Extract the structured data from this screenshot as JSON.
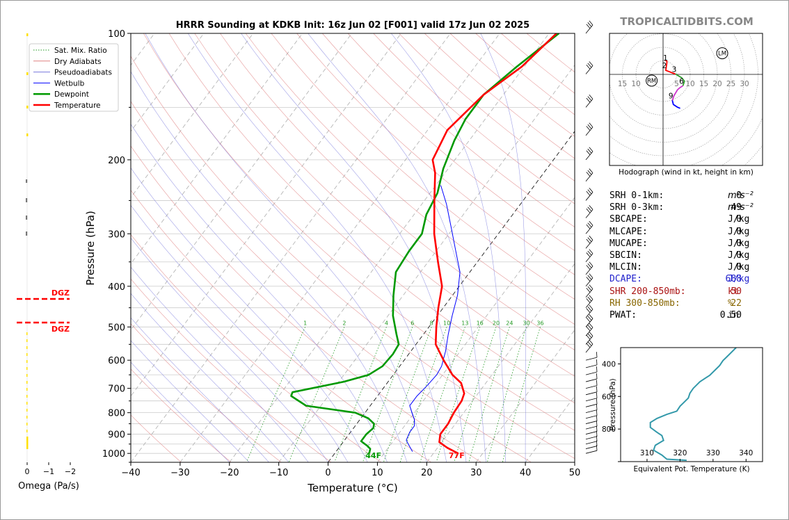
{
  "watermark": "TROPICALTIDBITS.COM",
  "chart_data": [
    {
      "type": "line",
      "name": "skew-t",
      "title": "HRRR Sounding at KDKB Init: 16z Jun 02 [F001] valid 17z Jun 02 2025",
      "xlabel": "Temperature (°C)",
      "ylabel": "Pressure (hPa)",
      "xlim": [
        -40,
        50
      ],
      "ylim": [
        1050,
        100
      ],
      "y_scale": "log",
      "x_ticks": [
        "−40",
        "−30",
        "−20",
        "−10",
        "0",
        "10",
        "20",
        "30",
        "40",
        "50"
      ],
      "y_ticks": [
        "100",
        "200",
        "300",
        "400",
        "500",
        "600",
        "700",
        "800",
        "900",
        "1000"
      ],
      "legend": [
        "Sat. Mix. Ratio",
        "Dry Adiabats",
        "Pseudoadiabats",
        "Wetbulb",
        "Dewpoint",
        "Temperature"
      ],
      "legend_position": "top-left",
      "mixing_ratio_labels": [
        "1",
        "2",
        "4",
        "6",
        "8",
        "10",
        "13",
        "16",
        "20",
        "24",
        "30",
        "36"
      ],
      "surface_temp_label": "77F",
      "surface_dewpoint_label": "44F",
      "series": [
        {
          "name": "Temperature",
          "color": "#ff0000",
          "points": [
            [
              25,
              1000
            ],
            [
              22,
              970
            ],
            [
              19.5,
              940
            ],
            [
              18.5,
              900
            ],
            [
              18.5,
              850
            ],
            [
              18,
              800
            ],
            [
              17.8,
              750
            ],
            [
              17.2,
              720
            ],
            [
              15,
              680
            ],
            [
              12,
              650
            ],
            [
              8,
              600
            ],
            [
              4,
              550
            ],
            [
              1.5,
              500
            ],
            [
              -1,
              450
            ],
            [
              -3.5,
              400
            ],
            [
              -8,
              350
            ],
            [
              -13,
              300
            ],
            [
              -18,
              250
            ],
            [
              -22,
              215
            ],
            [
              -24.5,
              200
            ],
            [
              -26,
              170
            ],
            [
              -24,
              140
            ],
            [
              -20.5,
              120
            ],
            [
              -18.5,
              100
            ]
          ]
        },
        {
          "name": "Dewpoint",
          "color": "#009900",
          "points": [
            [
              7,
              1000
            ],
            [
              6.5,
              975
            ],
            [
              5.5,
              960
            ],
            [
              3.5,
              935
            ],
            [
              3.5,
              900
            ],
            [
              4,
              870
            ],
            [
              3.5,
              850
            ],
            [
              1.5,
              825
            ],
            [
              -2,
              800
            ],
            [
              -13,
              770
            ],
            [
              -17.5,
              730
            ],
            [
              -17.8,
              715
            ],
            [
              -9,
              675
            ],
            [
              -5,
              650
            ],
            [
              -3.5,
              620
            ],
            [
              -3.2,
              580
            ],
            [
              -3.5,
              550
            ],
            [
              -5.5,
              520
            ],
            [
              -9,
              470
            ],
            [
              -12,
              420
            ],
            [
              -15,
              370
            ],
            [
              -15.5,
              330
            ],
            [
              -15.5,
              300
            ],
            [
              -17.5,
              270
            ],
            [
              -18.5,
              240
            ],
            [
              -21,
              210
            ],
            [
              -23,
              180
            ],
            [
              -24,
              160
            ],
            [
              -24,
              140
            ],
            [
              -21.5,
              120
            ],
            [
              -18,
              100
            ]
          ]
        },
        {
          "name": "Wetbulb",
          "color": "#0000ff",
          "points": [
            [
              15.5,
              990
            ],
            [
              14,
              960
            ],
            [
              12.5,
              930
            ],
            [
              12,
              890
            ],
            [
              12,
              860
            ],
            [
              11,
              830
            ],
            [
              9.5,
              800
            ],
            [
              8,
              770
            ],
            [
              8,
              730
            ],
            [
              8.5,
              690
            ],
            [
              8.8,
              650
            ],
            [
              8.5,
              620
            ],
            [
              7,
              570
            ],
            [
              5,
              520
            ],
            [
              3,
              470
            ],
            [
              1,
              420
            ],
            [
              -2,
              370
            ],
            [
              -6,
              330
            ],
            [
              -10.5,
              290
            ],
            [
              -15,
              255
            ],
            [
              -19,
              230
            ]
          ]
        }
      ]
    },
    {
      "type": "line",
      "name": "hodograph",
      "caption": "Hodograph (wind in kt, height in km)",
      "ring_labels_left": [
        "15",
        "10"
      ],
      "ring_labels_right": [
        "5",
        "10",
        "15",
        "20",
        "25",
        "30"
      ],
      "height_labels": [
        "1",
        "2",
        "3",
        "6",
        "9"
      ],
      "markers": [
        "RM",
        "LM"
      ],
      "segments": [
        {
          "color": "#ff0000",
          "points": [
            [
              0.7,
              5.3
            ],
            [
              1.4,
              4.9
            ],
            [
              1.4,
              4.3
            ],
            [
              1.2,
              2.9
            ],
            [
              1.0,
              1.5
            ],
            [
              2.8,
              0.8
            ],
            [
              4.6,
              0.1
            ]
          ]
        },
        {
          "color": "#2a9d2a",
          "points": [
            [
              4.6,
              0.1
            ],
            [
              6.8,
              -1.2
            ],
            [
              7.9,
              -2.5
            ],
            [
              7.3,
              -4.2
            ]
          ]
        },
        {
          "color": "#cc33cc",
          "points": [
            [
              7.3,
              -4.2
            ],
            [
              6.2,
              -4.9
            ],
            [
              5.3,
              -5.7
            ],
            [
              4.0,
              -7.9
            ],
            [
              3.4,
              -9.6
            ]
          ]
        },
        {
          "color": "#0000ff",
          "points": [
            [
              3.4,
              -9.6
            ],
            [
              3.8,
              -11.1
            ],
            [
              5.3,
              -12.1
            ],
            [
              6.3,
              -12.5
            ]
          ]
        }
      ]
    },
    {
      "type": "line",
      "name": "theta-e",
      "xlabel": "Equivalent Pot. Temperature (K)",
      "ylabel": "Pressure (hPa)",
      "xlim": [
        302,
        345
      ],
      "ylim": [
        1000,
        300
      ],
      "x_ticks": [
        "310",
        "320",
        "330",
        "340"
      ],
      "y_ticks": [
        "400",
        "600",
        "800"
      ],
      "color": "#3399aa",
      "points": [
        [
          322,
          992
        ],
        [
          316,
          985
        ],
        [
          314.5,
          960
        ],
        [
          312,
          930
        ],
        [
          312.5,
          900
        ],
        [
          315,
          870
        ],
        [
          314.5,
          840
        ],
        [
          313,
          820
        ],
        [
          311,
          790
        ],
        [
          311,
          760
        ],
        [
          313,
          735
        ],
        [
          316,
          710
        ],
        [
          319,
          690
        ],
        [
          320,
          660
        ],
        [
          321,
          640
        ],
        [
          322.5,
          610
        ],
        [
          323,
          580
        ],
        [
          324,
          550
        ],
        [
          326,
          510
        ],
        [
          329,
          470
        ],
        [
          331,
          430
        ],
        [
          332,
          410
        ],
        [
          333,
          380
        ],
        [
          334,
          360
        ],
        [
          335,
          340
        ],
        [
          337,
          300
        ]
      ]
    },
    {
      "type": "line",
      "name": "omega",
      "xlabel": "Omega (Pa/s)",
      "x_ticks": [
        "0",
        "−1",
        "−2"
      ],
      "dgz_label": "DGZ",
      "dgz_color": "#ff0000"
    }
  ],
  "stats": {
    "srh_1km": {
      "label": "SRH 0-1km:",
      "value": "0",
      "unit": "m²s⁻²"
    },
    "srh_3km": {
      "label": "SRH 0-3km:",
      "value": "49",
      "unit": "m²s⁻²"
    },
    "sbcape": {
      "label": "SBCAPE:",
      "value": "0",
      "unit": "J/kg"
    },
    "mlcape": {
      "label": "MLCAPE:",
      "value": "0",
      "unit": "J/kg"
    },
    "mucape": {
      "label": "MUCAPE:",
      "value": "0",
      "unit": "J/kg"
    },
    "sbcin": {
      "label": "SBCIN:",
      "value": "0",
      "unit": "J/kg"
    },
    "mlcin": {
      "label": "MLCIN:",
      "value": "0",
      "unit": "J/kg"
    },
    "dcape": {
      "label": "DCAPE:",
      "value": "688",
      "unit": "J/kg",
      "color": "#2222cc"
    },
    "shr": {
      "label": "SHR 200-850mb:",
      "value": "50",
      "unit": "kt",
      "color": "#aa1111"
    },
    "rh": {
      "label": "RH 300-850mb:",
      "value": "22",
      "unit": "%",
      "color": "#886600"
    },
    "pwat": {
      "label": "PWAT:",
      "value": "0.50",
      "unit": "in"
    }
  }
}
